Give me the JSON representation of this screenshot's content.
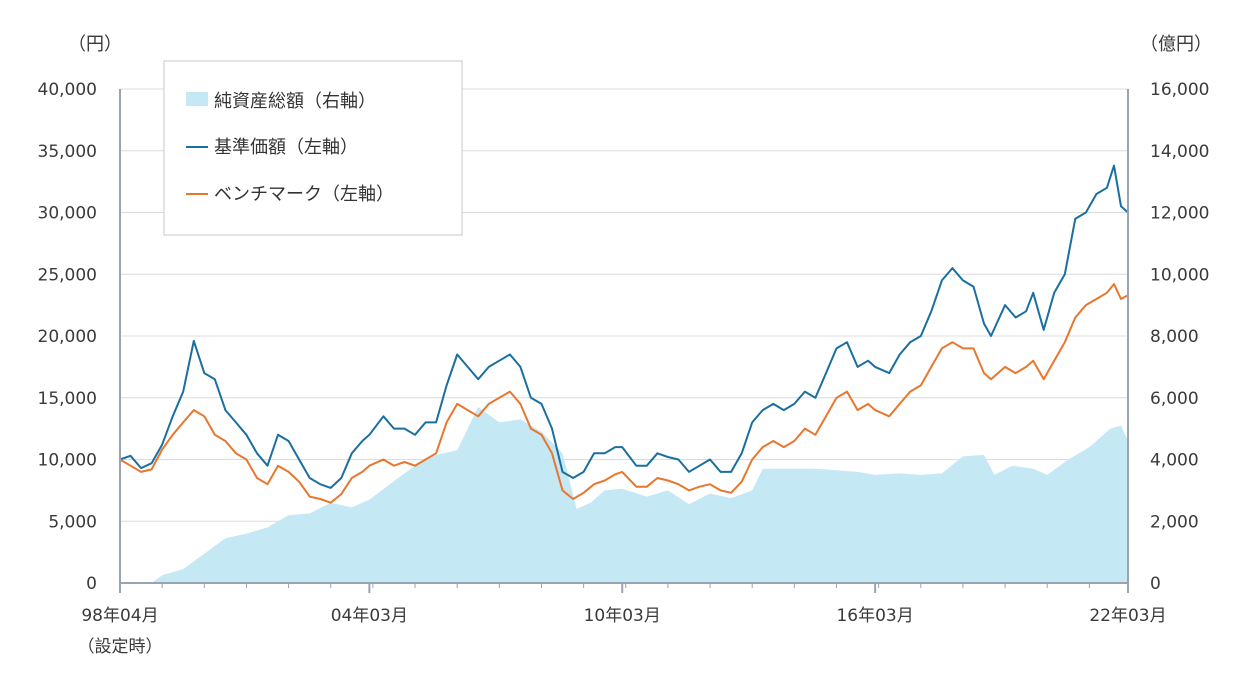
{
  "chart_data": {
    "type": "line",
    "left_unit": "（円）",
    "right_unit": "（億円）",
    "x_ticks": [
      {
        "label": "98年04月",
        "sub": "（設定時）",
        "date": "1998-04"
      },
      {
        "label": "04年03月",
        "date": "2004-03"
      },
      {
        "label": "10年03月",
        "date": "2010-03"
      },
      {
        "label": "16年03月",
        "date": "2016-03"
      },
      {
        "label": "22年03月",
        "date": "2022-03"
      }
    ],
    "x_range": [
      "1998-04",
      "2022-03"
    ],
    "y_left": {
      "min": 0,
      "max": 40000,
      "ticks": [
        "0",
        "5,000",
        "10,000",
        "15,000",
        "20,000",
        "25,000",
        "30,000",
        "35,000",
        "40,000"
      ]
    },
    "y_right": {
      "min": 0,
      "max": 16000,
      "ticks": [
        "0",
        "2,000",
        "4,000",
        "6,000",
        "8,000",
        "10,000",
        "12,000",
        "14,000",
        "16,000"
      ]
    },
    "grid": "horizontal",
    "legend_position": "top-left",
    "series": [
      {
        "name": "純資産総額（右軸）",
        "kind": "area",
        "axis": "right",
        "color": "#c5e8f5",
        "points": [
          [
            "1998-04",
            0
          ],
          [
            "1999-01",
            0
          ],
          [
            "1999-04",
            250
          ],
          [
            "1999-10",
            450
          ],
          [
            "2000-04",
            950
          ],
          [
            "2000-10",
            1450
          ],
          [
            "2001-04",
            1600
          ],
          [
            "2001-10",
            1800
          ],
          [
            "2002-04",
            2200
          ],
          [
            "2002-10",
            2250
          ],
          [
            "2003-04",
            2600
          ],
          [
            "2003-10",
            2450
          ],
          [
            "2004-03",
            2700
          ],
          [
            "2004-10",
            3300
          ],
          [
            "2005-04",
            3800
          ],
          [
            "2005-10",
            4150
          ],
          [
            "2006-04",
            4300
          ],
          [
            "2006-10",
            5700
          ],
          [
            "2007-04",
            5200
          ],
          [
            "2007-10",
            5300
          ],
          [
            "2008-04",
            4900
          ],
          [
            "2008-10",
            4200
          ],
          [
            "2009-02",
            2400
          ],
          [
            "2009-06",
            2600
          ],
          [
            "2009-10",
            3000
          ],
          [
            "2010-03",
            3050
          ],
          [
            "2010-10",
            2800
          ],
          [
            "2011-04",
            3000
          ],
          [
            "2011-10",
            2550
          ],
          [
            "2012-04",
            2900
          ],
          [
            "2012-10",
            2750
          ],
          [
            "2013-04",
            3000
          ],
          [
            "2013-07",
            3700
          ],
          [
            "2014-03",
            3700
          ],
          [
            "2014-10",
            3700
          ],
          [
            "2015-04",
            3650
          ],
          [
            "2015-10",
            3600
          ],
          [
            "2016-03",
            3500
          ],
          [
            "2016-10",
            3550
          ],
          [
            "2017-04",
            3500
          ],
          [
            "2017-10",
            3550
          ],
          [
            "2018-04",
            4100
          ],
          [
            "2018-10",
            4150
          ],
          [
            "2019-01",
            3500
          ],
          [
            "2019-06",
            3800
          ],
          [
            "2019-12",
            3700
          ],
          [
            "2020-04",
            3500
          ],
          [
            "2020-10",
            4000
          ],
          [
            "2021-04",
            4400
          ],
          [
            "2021-10",
            5000
          ],
          [
            "2022-01",
            5100
          ],
          [
            "2022-03",
            4600
          ]
        ]
      },
      {
        "name": "基準価額（左軸）",
        "kind": "line",
        "axis": "left",
        "color": "#1a6fa0",
        "points": [
          [
            "1998-04",
            10000
          ],
          [
            "1998-07",
            10300
          ],
          [
            "1998-10",
            9300
          ],
          [
            "1999-01",
            9700
          ],
          [
            "1999-04",
            11200
          ],
          [
            "1999-07",
            13500
          ],
          [
            "1999-10",
            15500
          ],
          [
            "2000-01",
            19600
          ],
          [
            "2000-04",
            17000
          ],
          [
            "2000-07",
            16500
          ],
          [
            "2000-10",
            14000
          ],
          [
            "2001-01",
            13000
          ],
          [
            "2001-04",
            12000
          ],
          [
            "2001-07",
            10500
          ],
          [
            "2001-10",
            9500
          ],
          [
            "2002-01",
            12000
          ],
          [
            "2002-04",
            11500
          ],
          [
            "2002-07",
            10000
          ],
          [
            "2002-10",
            8500
          ],
          [
            "2003-01",
            8000
          ],
          [
            "2003-04",
            7700
          ],
          [
            "2003-07",
            8500
          ],
          [
            "2003-10",
            10500
          ],
          [
            "2004-01",
            11500
          ],
          [
            "2004-03",
            12000
          ],
          [
            "2004-07",
            13500
          ],
          [
            "2004-10",
            12500
          ],
          [
            "2005-01",
            12500
          ],
          [
            "2005-04",
            12000
          ],
          [
            "2005-07",
            13000
          ],
          [
            "2005-10",
            13000
          ],
          [
            "2006-01",
            16000
          ],
          [
            "2006-04",
            18500
          ],
          [
            "2006-07",
            17500
          ],
          [
            "2006-10",
            16500
          ],
          [
            "2007-01",
            17500
          ],
          [
            "2007-04",
            18000
          ],
          [
            "2007-07",
            18500
          ],
          [
            "2007-10",
            17500
          ],
          [
            "2008-01",
            15000
          ],
          [
            "2008-04",
            14500
          ],
          [
            "2008-07",
            12500
          ],
          [
            "2008-10",
            9000
          ],
          [
            "2009-01",
            8500
          ],
          [
            "2009-04",
            9000
          ],
          [
            "2009-07",
            10500
          ],
          [
            "2009-10",
            10500
          ],
          [
            "2010-01",
            11000
          ],
          [
            "2010-03",
            11000
          ],
          [
            "2010-07",
            9500
          ],
          [
            "2010-10",
            9500
          ],
          [
            "2011-01",
            10500
          ],
          [
            "2011-04",
            10200
          ],
          [
            "2011-07",
            10000
          ],
          [
            "2011-10",
            9000
          ],
          [
            "2012-01",
            9500
          ],
          [
            "2012-04",
            10000
          ],
          [
            "2012-07",
            9000
          ],
          [
            "2012-10",
            9000
          ],
          [
            "2013-01",
            10500
          ],
          [
            "2013-04",
            13000
          ],
          [
            "2013-07",
            14000
          ],
          [
            "2013-10",
            14500
          ],
          [
            "2014-01",
            14000
          ],
          [
            "2014-04",
            14500
          ],
          [
            "2014-07",
            15500
          ],
          [
            "2014-10",
            15000
          ],
          [
            "2015-01",
            17000
          ],
          [
            "2015-04",
            19000
          ],
          [
            "2015-07",
            19500
          ],
          [
            "2015-10",
            17500
          ],
          [
            "2016-01",
            18000
          ],
          [
            "2016-03",
            17500
          ],
          [
            "2016-07",
            17000
          ],
          [
            "2016-10",
            18500
          ],
          [
            "2017-01",
            19500
          ],
          [
            "2017-04",
            20000
          ],
          [
            "2017-07",
            22000
          ],
          [
            "2017-10",
            24500
          ],
          [
            "2018-01",
            25500
          ],
          [
            "2018-04",
            24500
          ],
          [
            "2018-07",
            24000
          ],
          [
            "2018-10",
            21000
          ],
          [
            "2018-12",
            20000
          ],
          [
            "2019-04",
            22500
          ],
          [
            "2019-07",
            21500
          ],
          [
            "2019-10",
            22000
          ],
          [
            "2019-12",
            23500
          ],
          [
            "2020-03",
            20500
          ],
          [
            "2020-06",
            23500
          ],
          [
            "2020-09",
            25000
          ],
          [
            "2020-12",
            29500
          ],
          [
            "2021-03",
            30000
          ],
          [
            "2021-06",
            31500
          ],
          [
            "2021-09",
            32000
          ],
          [
            "2021-11",
            33800
          ],
          [
            "2022-01",
            30500
          ],
          [
            "2022-03",
            30000
          ]
        ]
      },
      {
        "name": "ベンチマーク（左軸）",
        "kind": "line",
        "axis": "left",
        "color": "#e8772e",
        "points": [
          [
            "1998-04",
            10000
          ],
          [
            "1998-07",
            9500
          ],
          [
            "1998-10",
            9000
          ],
          [
            "1999-01",
            9200
          ],
          [
            "1999-04",
            10800
          ],
          [
            "1999-07",
            12000
          ],
          [
            "1999-10",
            13000
          ],
          [
            "2000-01",
            14000
          ],
          [
            "2000-04",
            13500
          ],
          [
            "2000-07",
            12000
          ],
          [
            "2000-10",
            11500
          ],
          [
            "2001-01",
            10500
          ],
          [
            "2001-04",
            10000
          ],
          [
            "2001-07",
            8500
          ],
          [
            "2001-10",
            8000
          ],
          [
            "2002-01",
            9500
          ],
          [
            "2002-04",
            9000
          ],
          [
            "2002-07",
            8200
          ],
          [
            "2002-10",
            7000
          ],
          [
            "2003-01",
            6800
          ],
          [
            "2003-04",
            6500
          ],
          [
            "2003-07",
            7200
          ],
          [
            "2003-10",
            8500
          ],
          [
            "2004-01",
            9000
          ],
          [
            "2004-03",
            9500
          ],
          [
            "2004-07",
            10000
          ],
          [
            "2004-10",
            9500
          ],
          [
            "2005-01",
            9800
          ],
          [
            "2005-04",
            9500
          ],
          [
            "2005-07",
            10000
          ],
          [
            "2005-10",
            10500
          ],
          [
            "2006-01",
            13000
          ],
          [
            "2006-04",
            14500
          ],
          [
            "2006-07",
            14000
          ],
          [
            "2006-10",
            13500
          ],
          [
            "2007-01",
            14500
          ],
          [
            "2007-04",
            15000
          ],
          [
            "2007-07",
            15500
          ],
          [
            "2007-10",
            14500
          ],
          [
            "2008-01",
            12500
          ],
          [
            "2008-04",
            12000
          ],
          [
            "2008-07",
            10500
          ],
          [
            "2008-10",
            7500
          ],
          [
            "2009-01",
            6800
          ],
          [
            "2009-04",
            7300
          ],
          [
            "2009-07",
            8000
          ],
          [
            "2009-10",
            8300
          ],
          [
            "2010-01",
            8800
          ],
          [
            "2010-03",
            9000
          ],
          [
            "2010-07",
            7800
          ],
          [
            "2010-10",
            7800
          ],
          [
            "2011-01",
            8500
          ],
          [
            "2011-04",
            8300
          ],
          [
            "2011-07",
            8000
          ],
          [
            "2011-10",
            7500
          ],
          [
            "2012-01",
            7800
          ],
          [
            "2012-04",
            8000
          ],
          [
            "2012-07",
            7500
          ],
          [
            "2012-10",
            7300
          ],
          [
            "2013-01",
            8200
          ],
          [
            "2013-04",
            10000
          ],
          [
            "2013-07",
            11000
          ],
          [
            "2013-10",
            11500
          ],
          [
            "2014-01",
            11000
          ],
          [
            "2014-04",
            11500
          ],
          [
            "2014-07",
            12500
          ],
          [
            "2014-10",
            12000
          ],
          [
            "2015-01",
            13500
          ],
          [
            "2015-04",
            15000
          ],
          [
            "2015-07",
            15500
          ],
          [
            "2015-10",
            14000
          ],
          [
            "2016-01",
            14500
          ],
          [
            "2016-03",
            14000
          ],
          [
            "2016-07",
            13500
          ],
          [
            "2016-10",
            14500
          ],
          [
            "2017-01",
            15500
          ],
          [
            "2017-04",
            16000
          ],
          [
            "2017-07",
            17500
          ],
          [
            "2017-10",
            19000
          ],
          [
            "2018-01",
            19500
          ],
          [
            "2018-04",
            19000
          ],
          [
            "2018-07",
            19000
          ],
          [
            "2018-10",
            17000
          ],
          [
            "2018-12",
            16500
          ],
          [
            "2019-04",
            17500
          ],
          [
            "2019-07",
            17000
          ],
          [
            "2019-10",
            17500
          ],
          [
            "2019-12",
            18000
          ],
          [
            "2020-03",
            16500
          ],
          [
            "2020-06",
            18000
          ],
          [
            "2020-09",
            19500
          ],
          [
            "2020-12",
            21500
          ],
          [
            "2021-03",
            22500
          ],
          [
            "2021-06",
            23000
          ],
          [
            "2021-09",
            23500
          ],
          [
            "2021-11",
            24200
          ],
          [
            "2022-01",
            23000
          ],
          [
            "2022-03",
            23300
          ]
        ]
      }
    ]
  }
}
